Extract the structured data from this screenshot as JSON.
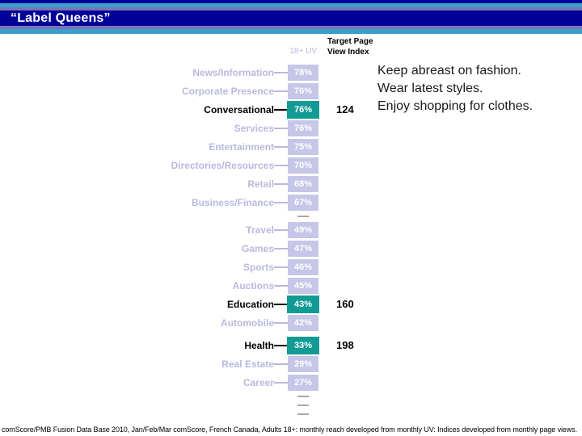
{
  "slide": {
    "title": "“Label Queens”",
    "source_note": "comScore/PMB Fusion Data Base 2010, Jan/Feb/Mar comScore, French Canada, Adults 18+: monthly reach developed from monthly UV: Indices developed from monthly page views."
  },
  "annotation": {
    "lines": [
      "Keep abreast on fashion.",
      "Wear latest styles.",
      "Enjoy shopping for clothes."
    ]
  },
  "chart_data": {
    "type": "bar",
    "orientation": "horizontal",
    "bar_style": "uniform-width value boxes (bars not scaled to value)",
    "unit": "%",
    "value_column_header": "18+ UV",
    "index_column_header": [
      "Target Page",
      "View Index"
    ],
    "rows": [
      {
        "label": "News/Information",
        "value": 78
      },
      {
        "label": "Corporate Presence",
        "value": 76
      },
      {
        "label": "Conversational",
        "value": 76,
        "highlight": true,
        "index": 124
      },
      {
        "label": "Services",
        "value": 76
      },
      {
        "label": "Entertainment",
        "value": 75
      },
      {
        "label": "Directories/Resources",
        "value": 70
      },
      {
        "label": "Retail",
        "value": 68
      },
      {
        "label": "Business/Finance",
        "value": 67
      },
      {
        "type": "separator"
      },
      {
        "label": "Travel",
        "value": 49
      },
      {
        "label": "Games",
        "value": 47
      },
      {
        "label": "Sports",
        "value": 46
      },
      {
        "label": "Auctions",
        "value": 45
      },
      {
        "label": "Education",
        "value": 43,
        "highlight": true,
        "index": 160
      },
      {
        "label": "Automobile",
        "value": 42
      },
      {
        "type": "gap"
      },
      {
        "label": "Health",
        "value": 33,
        "highlight": true,
        "index": 198
      },
      {
        "label": "Real Estate",
        "value": 29
      },
      {
        "label": "Career",
        "value": 27
      },
      {
        "type": "separator"
      },
      {
        "type": "separator"
      },
      {
        "type": "separator"
      }
    ]
  },
  "colors": {
    "navy": "#000099",
    "cyan": "#3A9FCC",
    "slate": "#7575B8",
    "bar": "#C6C6E8",
    "bar-label": "#B9B9DE",
    "highlight": "#129B94",
    "dash": "#A8A8A8",
    "ink": "#000000",
    "annotation-ink": "#1A1A1A"
  }
}
